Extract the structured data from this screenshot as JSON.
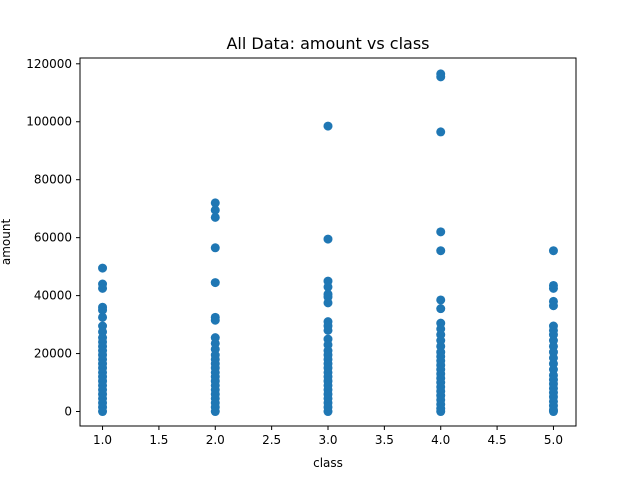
{
  "chart_data": {
    "type": "scatter",
    "title": "All Data: amount vs class",
    "xlabel": "class",
    "ylabel": "amount",
    "xlim": [
      0.8,
      5.2
    ],
    "ylim": [
      -5000,
      122000
    ],
    "xticks": [
      1.0,
      1.5,
      2.0,
      2.5,
      3.0,
      3.5,
      4.0,
      4.5,
      5.0
    ],
    "xtick_labels": [
      "1.0",
      "1.5",
      "2.0",
      "2.5",
      "3.0",
      "3.5",
      "4.0",
      "4.5",
      "5.0"
    ],
    "yticks": [
      0,
      20000,
      40000,
      60000,
      80000,
      100000,
      120000
    ],
    "ytick_labels": [
      "0",
      "20000",
      "40000",
      "60000",
      "80000",
      "100000",
      "120000"
    ],
    "grid": false,
    "marker_color": "#1f77b4",
    "series": [
      {
        "points": [
          {
            "x": 1,
            "y": 49500
          },
          {
            "x": 1,
            "y": 44000
          },
          {
            "x": 1,
            "y": 42500
          },
          {
            "x": 1,
            "y": 36000
          },
          {
            "x": 1,
            "y": 35000
          },
          {
            "x": 1,
            "y": 32500
          },
          {
            "x": 1,
            "y": 29500
          },
          {
            "x": 1,
            "y": 27500
          },
          {
            "x": 1,
            "y": 25500
          },
          {
            "x": 1,
            "y": 24000
          },
          {
            "x": 1,
            "y": 22500
          },
          {
            "x": 1,
            "y": 21000
          },
          {
            "x": 1,
            "y": 19500
          },
          {
            "x": 1,
            "y": 18000
          },
          {
            "x": 1,
            "y": 16500
          },
          {
            "x": 1,
            "y": 15000
          },
          {
            "x": 1,
            "y": 13500
          },
          {
            "x": 1,
            "y": 12000
          },
          {
            "x": 1,
            "y": 10500
          },
          {
            "x": 1,
            "y": 9000
          },
          {
            "x": 1,
            "y": 7500
          },
          {
            "x": 1,
            "y": 6000
          },
          {
            "x": 1,
            "y": 4500
          },
          {
            "x": 1,
            "y": 3000
          },
          {
            "x": 1,
            "y": 1500
          },
          {
            "x": 1,
            "y": 0
          },
          {
            "x": 2,
            "y": 72000
          },
          {
            "x": 2,
            "y": 69500
          },
          {
            "x": 2,
            "y": 67000
          },
          {
            "x": 2,
            "y": 56500
          },
          {
            "x": 2,
            "y": 44500
          },
          {
            "x": 2,
            "y": 32500
          },
          {
            "x": 2,
            "y": 31500
          },
          {
            "x": 2,
            "y": 25500
          },
          {
            "x": 2,
            "y": 23500
          },
          {
            "x": 2,
            "y": 21500
          },
          {
            "x": 2,
            "y": 19500
          },
          {
            "x": 2,
            "y": 18000
          },
          {
            "x": 2,
            "y": 16500
          },
          {
            "x": 2,
            "y": 15000
          },
          {
            "x": 2,
            "y": 13500
          },
          {
            "x": 2,
            "y": 12000
          },
          {
            "x": 2,
            "y": 10500
          },
          {
            "x": 2,
            "y": 9000
          },
          {
            "x": 2,
            "y": 7500
          },
          {
            "x": 2,
            "y": 6000
          },
          {
            "x": 2,
            "y": 4500
          },
          {
            "x": 2,
            "y": 3000
          },
          {
            "x": 2,
            "y": 1500
          },
          {
            "x": 2,
            "y": 0
          },
          {
            "x": 3,
            "y": 98500
          },
          {
            "x": 3,
            "y": 59500
          },
          {
            "x": 3,
            "y": 45000
          },
          {
            "x": 3,
            "y": 43000
          },
          {
            "x": 3,
            "y": 40500
          },
          {
            "x": 3,
            "y": 39500
          },
          {
            "x": 3,
            "y": 37500
          },
          {
            "x": 3,
            "y": 31000
          },
          {
            "x": 3,
            "y": 29500
          },
          {
            "x": 3,
            "y": 28000
          },
          {
            "x": 3,
            "y": 25000
          },
          {
            "x": 3,
            "y": 23000
          },
          {
            "x": 3,
            "y": 21000
          },
          {
            "x": 3,
            "y": 19500
          },
          {
            "x": 3,
            "y": 18000
          },
          {
            "x": 3,
            "y": 16500
          },
          {
            "x": 3,
            "y": 15000
          },
          {
            "x": 3,
            "y": 13500
          },
          {
            "x": 3,
            "y": 12000
          },
          {
            "x": 3,
            "y": 10500
          },
          {
            "x": 3,
            "y": 9000
          },
          {
            "x": 3,
            "y": 7500
          },
          {
            "x": 3,
            "y": 6000
          },
          {
            "x": 3,
            "y": 4500
          },
          {
            "x": 3,
            "y": 3000
          },
          {
            "x": 3,
            "y": 1500
          },
          {
            "x": 3,
            "y": 0
          },
          {
            "x": 4,
            "y": 116500
          },
          {
            "x": 4,
            "y": 115500
          },
          {
            "x": 4,
            "y": 96500
          },
          {
            "x": 4,
            "y": 62000
          },
          {
            "x": 4,
            "y": 55500
          },
          {
            "x": 4,
            "y": 38500
          },
          {
            "x": 4,
            "y": 35500
          },
          {
            "x": 4,
            "y": 30500
          },
          {
            "x": 4,
            "y": 28500
          },
          {
            "x": 4,
            "y": 26500
          },
          {
            "x": 4,
            "y": 24500
          },
          {
            "x": 4,
            "y": 22500
          },
          {
            "x": 4,
            "y": 20500
          },
          {
            "x": 4,
            "y": 19000
          },
          {
            "x": 4,
            "y": 17500
          },
          {
            "x": 4,
            "y": 16000
          },
          {
            "x": 4,
            "y": 14500
          },
          {
            "x": 4,
            "y": 13000
          },
          {
            "x": 4,
            "y": 11500
          },
          {
            "x": 4,
            "y": 10000
          },
          {
            "x": 4,
            "y": 8500
          },
          {
            "x": 4,
            "y": 7000
          },
          {
            "x": 4,
            "y": 5500
          },
          {
            "x": 4,
            "y": 4000
          },
          {
            "x": 4,
            "y": 2500
          },
          {
            "x": 4,
            "y": 1000
          },
          {
            "x": 4,
            "y": 0
          },
          {
            "x": 5,
            "y": 55500
          },
          {
            "x": 5,
            "y": 43500
          },
          {
            "x": 5,
            "y": 42500
          },
          {
            "x": 5,
            "y": 38000
          },
          {
            "x": 5,
            "y": 36500
          },
          {
            "x": 5,
            "y": 29500
          },
          {
            "x": 5,
            "y": 28000
          },
          {
            "x": 5,
            "y": 26500
          },
          {
            "x": 5,
            "y": 24500
          },
          {
            "x": 5,
            "y": 22500
          },
          {
            "x": 5,
            "y": 20500
          },
          {
            "x": 5,
            "y": 18500
          },
          {
            "x": 5,
            "y": 16500
          },
          {
            "x": 5,
            "y": 14500
          },
          {
            "x": 5,
            "y": 12500
          },
          {
            "x": 5,
            "y": 11000
          },
          {
            "x": 5,
            "y": 9500
          },
          {
            "x": 5,
            "y": 8000
          },
          {
            "x": 5,
            "y": 6500
          },
          {
            "x": 5,
            "y": 5000
          },
          {
            "x": 5,
            "y": 3500
          },
          {
            "x": 5,
            "y": 2000
          },
          {
            "x": 5,
            "y": 500
          },
          {
            "x": 5,
            "y": 0
          }
        ]
      }
    ]
  }
}
